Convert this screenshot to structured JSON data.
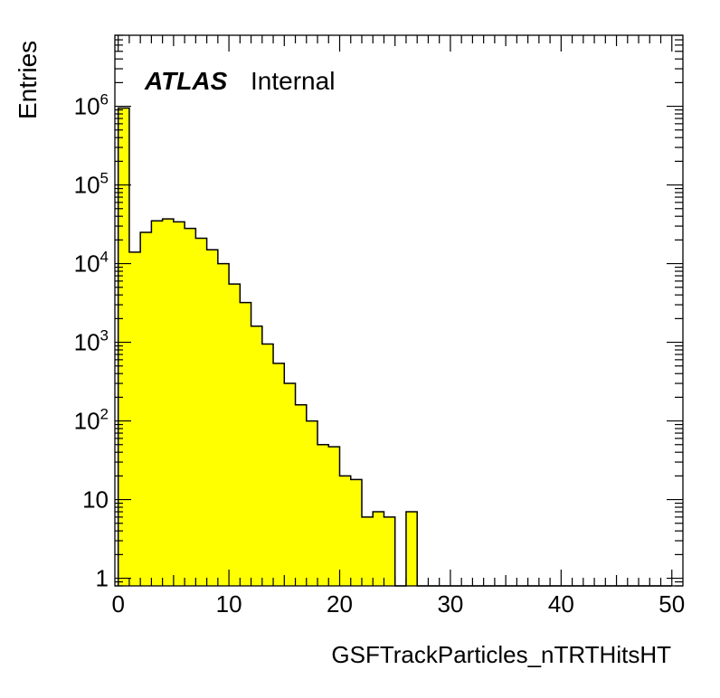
{
  "chart_data": {
    "type": "bar",
    "histogram": true,
    "bin_width": 1,
    "x_start": 0,
    "title": "",
    "xlabel": "GSFTrackParticles_nTRTHitsHT",
    "ylabel": "Entries",
    "xlim": [
      -0.3,
      51
    ],
    "ylim": [
      0.8,
      8000000
    ],
    "yscale": "log",
    "grid": false,
    "legend": "none",
    "fill_color": "#ffff00",
    "line_color": "#000000",
    "annotation": {
      "bold": "ATLAS",
      "normal": "Internal"
    },
    "xticks": [
      0,
      10,
      20,
      30,
      40,
      50
    ],
    "xtick_labels": [
      "0",
      "10",
      "20",
      "30",
      "40",
      "50"
    ],
    "yticks": [
      1,
      10,
      100,
      1000,
      10000,
      100000,
      1000000
    ],
    "ytick_labels": [
      {
        "base": "1",
        "exp": ""
      },
      {
        "base": "10",
        "exp": ""
      },
      {
        "base": "10",
        "exp": "2"
      },
      {
        "base": "10",
        "exp": "3"
      },
      {
        "base": "10",
        "exp": "4"
      },
      {
        "base": "10",
        "exp": "5"
      },
      {
        "base": "10",
        "exp": "6"
      }
    ],
    "values": [
      950000,
      14000,
      25000,
      35000,
      37000,
      34000,
      28000,
      21000,
      15000,
      10000,
      5500,
      3200,
      1600,
      950,
      540,
      300,
      160,
      100,
      50,
      47,
      20,
      18,
      6,
      7,
      6,
      0,
      7,
      0,
      0,
      0,
      0,
      0,
      0,
      0,
      0,
      0,
      0,
      0,
      0,
      0,
      0,
      0,
      0,
      0,
      0,
      0,
      0,
      0,
      0,
      0
    ]
  }
}
